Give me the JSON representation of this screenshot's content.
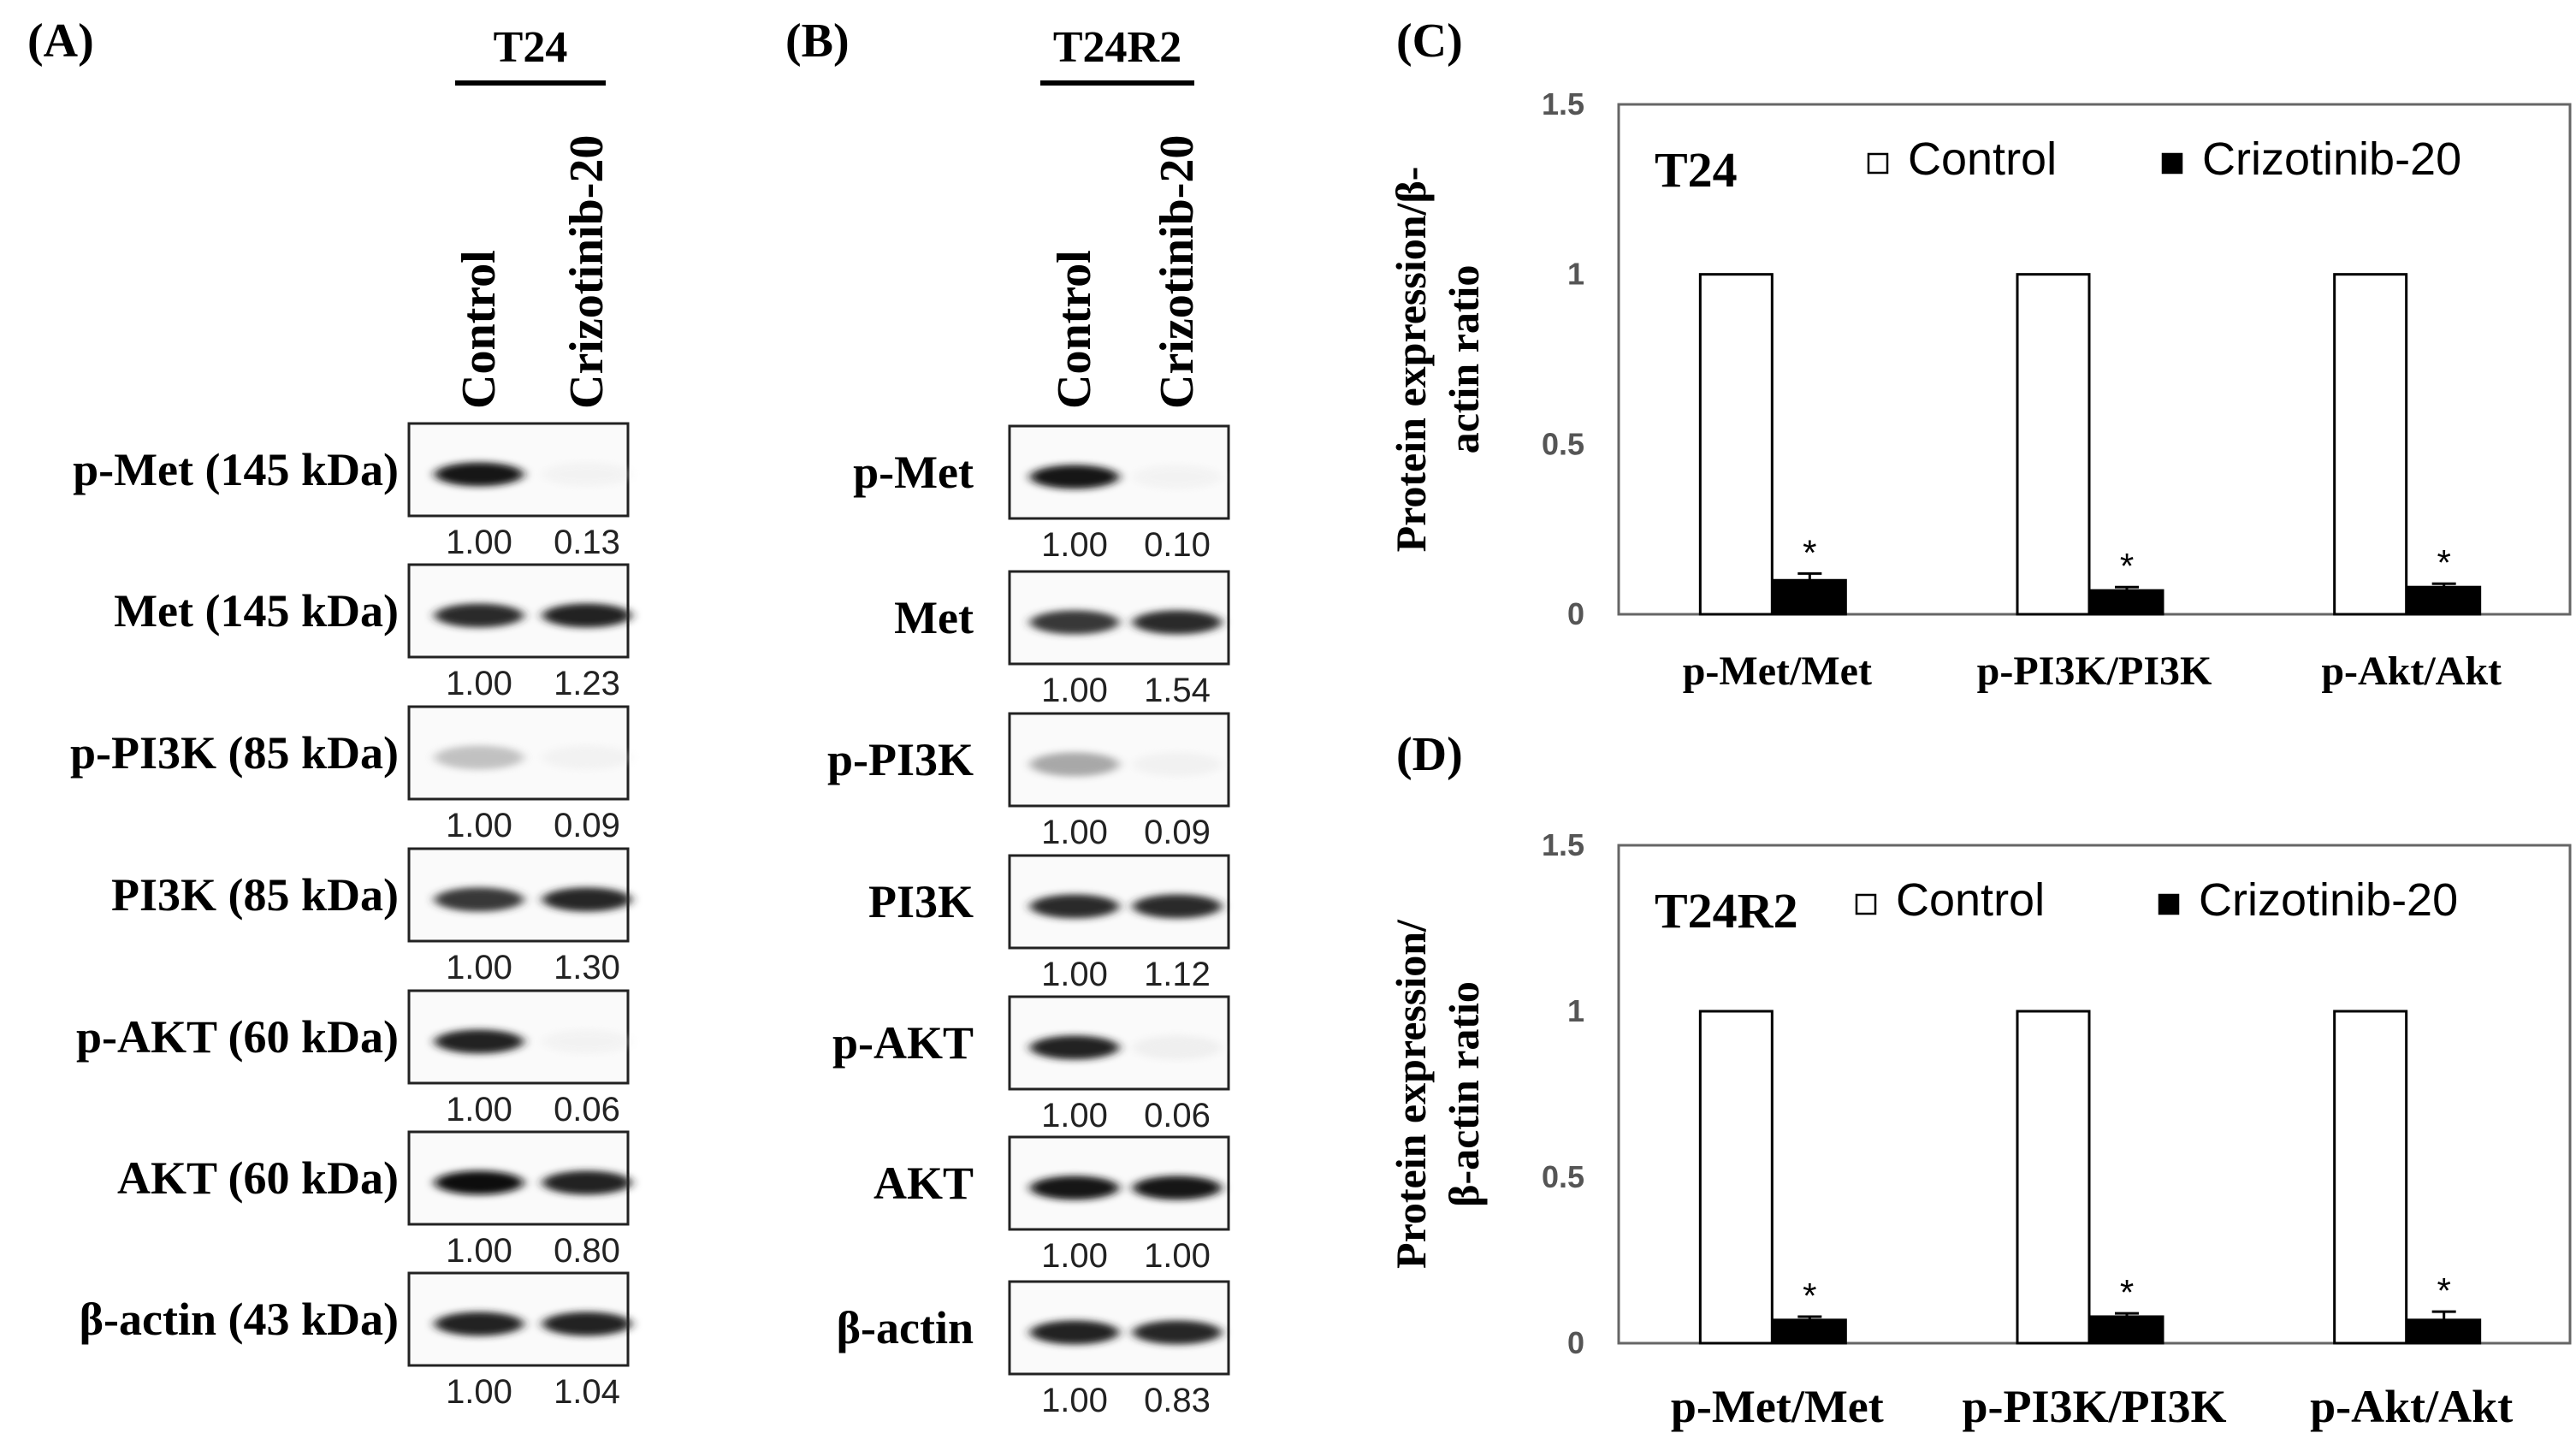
{
  "panels": {
    "A": {
      "letter": "(A)",
      "cell_line": "T24",
      "lanes": [
        "Control",
        "Crizotinib-20"
      ],
      "blots": [
        {
          "label": "p-Met (145 kDa)",
          "values": [
            "1.00",
            "0.13"
          ],
          "intensity": [
            0.95,
            0.04
          ]
        },
        {
          "label": "Met (145 kDa)",
          "values": [
            "1.00",
            "1.23"
          ],
          "intensity": [
            0.85,
            0.9
          ]
        },
        {
          "label": "p-PI3K (85 kDa)",
          "values": [
            "1.00",
            "0.09"
          ],
          "intensity": [
            0.35,
            0.05
          ]
        },
        {
          "label": "PI3K (85 kDa)",
          "values": [
            "1.00",
            "1.30"
          ],
          "intensity": [
            0.8,
            0.88
          ]
        },
        {
          "label": "p-AKT (60 kDa)",
          "values": [
            "1.00",
            "0.06"
          ],
          "intensity": [
            0.9,
            0.04
          ]
        },
        {
          "label": "AKT (60 kDa)",
          "values": [
            "1.00",
            "0.80"
          ],
          "intensity": [
            0.97,
            0.9
          ]
        },
        {
          "label": "β-actin (43 kDa)",
          "values": [
            "1.00",
            "1.04"
          ],
          "intensity": [
            0.9,
            0.9
          ]
        }
      ]
    },
    "B": {
      "letter": "(B)",
      "cell_line": "T24R2",
      "lanes": [
        "Control",
        "Crizotinib-20"
      ],
      "blots": [
        {
          "label": "p-Met",
          "values": [
            "1.00",
            "0.10"
          ],
          "intensity": [
            0.95,
            0.04
          ]
        },
        {
          "label": "Met",
          "values": [
            "1.00",
            "1.54"
          ],
          "intensity": [
            0.8,
            0.85
          ]
        },
        {
          "label": "p-PI3K",
          "values": [
            "1.00",
            "0.09"
          ],
          "intensity": [
            0.45,
            0.06
          ]
        },
        {
          "label": "PI3K",
          "values": [
            "1.00",
            "1.12"
          ],
          "intensity": [
            0.85,
            0.85
          ]
        },
        {
          "label": "p-AKT",
          "values": [
            "1.00",
            "0.06"
          ],
          "intensity": [
            0.9,
            0.08
          ]
        },
        {
          "label": "AKT",
          "values": [
            "1.00",
            "1.00"
          ],
          "intensity": [
            0.95,
            0.95
          ]
        },
        {
          "label": "β-actin",
          "values": [
            "1.00",
            "0.83"
          ],
          "intensity": [
            0.9,
            0.88
          ]
        }
      ]
    }
  },
  "chart_data": [
    {
      "panel": "(C)",
      "type": "bar",
      "title": "T24",
      "ylabel_lines": [
        "Protein expression/β-",
        "actin ratio"
      ],
      "categories": [
        "p-Met/Met",
        "p-PI3K/PI3K",
        "p-Akt/Akt"
      ],
      "series": [
        {
          "name": "Control",
          "values": [
            1.0,
            1.0,
            1.0
          ],
          "errors": [
            0,
            0,
            0
          ],
          "fill": "#ffffff"
        },
        {
          "name": "Crizotinib-20",
          "values": [
            0.1,
            0.07,
            0.08
          ],
          "errors": [
            0.02,
            0.01,
            0.01
          ],
          "fill": "#000000"
        }
      ],
      "significance": [
        "*",
        "*",
        "*"
      ],
      "ylim": [
        0,
        1.5
      ],
      "yticks": [
        "0",
        "0.5",
        "1",
        "1.5"
      ],
      "legend_position": "top"
    },
    {
      "panel": "(D)",
      "type": "bar",
      "title": "T24R2",
      "ylabel_lines": [
        "Protein expression/",
        "β-actin ratio"
      ],
      "categories": [
        "p-Met/Met",
        "p-PI3K/PI3K",
        "p-Akt/Akt"
      ],
      "series": [
        {
          "name": "Control",
          "values": [
            1.0,
            1.0,
            1.0
          ],
          "errors": [
            0,
            0,
            0
          ],
          "fill": "#ffffff"
        },
        {
          "name": "Crizotinib-20",
          "values": [
            0.07,
            0.08,
            0.07
          ],
          "errors": [
            0.01,
            0.01,
            0.025
          ],
          "fill": "#000000"
        }
      ],
      "significance": [
        "*",
        "*",
        "*"
      ],
      "ylim": [
        0,
        1.5
      ],
      "yticks": [
        "0",
        "0.5",
        "1",
        "1.5"
      ],
      "legend_position": "top"
    }
  ]
}
